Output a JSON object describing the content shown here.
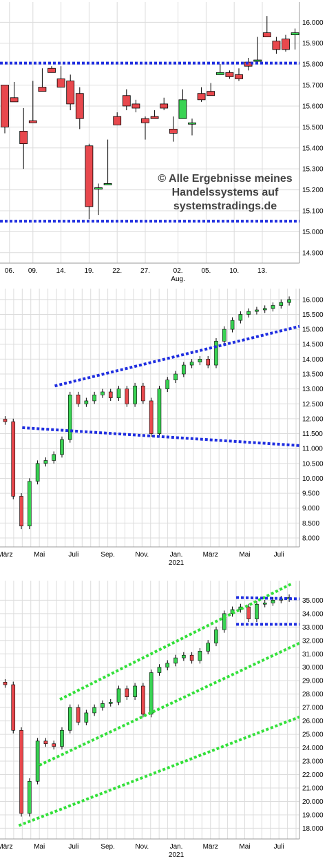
{
  "watermark": {
    "line1": "© Alle Ergebnisse meines",
    "line2": "Handelssystems auf",
    "line3": "systemstradings.de"
  },
  "colors": {
    "up": "#39d353",
    "down": "#e8484d",
    "support": "#1f2ee0",
    "channel": "#33e03a",
    "grid": "#dcdcdc"
  },
  "chart_data": [
    {
      "type": "candlestick",
      "title": "",
      "ylim": [
        14850,
        16080
      ],
      "y_ticks": [
        14900,
        15000,
        15100,
        15200,
        15300,
        15400,
        15500,
        15600,
        15700,
        15800,
        15900,
        16000
      ],
      "y_tick_labels": [
        "14.900",
        "15.000",
        "15.100",
        "15.200",
        "15.300",
        "15.400",
        "15.500",
        "15.600",
        "15.700",
        "15.800",
        "15.900",
        "16.000"
      ],
      "x_tick_labels": [
        "06.",
        "09.",
        "14.",
        "19.",
        "22.",
        "27.",
        "02.",
        "05.",
        "10.",
        "13."
      ],
      "x_tick_positions": [
        0.5,
        3,
        6,
        9,
        12,
        15,
        18.5,
        21.5,
        24.5,
        27.5
      ],
      "x_sublabel": "Aug.",
      "x_sublabel_position": 18.5,
      "candles": [
        [
          15700,
          15600,
          15500,
          15470
        ],
        [
          15640,
          15700,
          15620,
          15715
        ],
        [
          15480,
          15590,
          15420,
          15300
        ],
        [
          15530,
          15720,
          15520,
          15520
        ],
        [
          15690,
          15780,
          15670,
          15670
        ],
        [
          15780,
          15790,
          15760,
          15760
        ],
        [
          15730,
          15750,
          15690,
          15790
        ],
        [
          15720,
          15750,
          15610,
          15580
        ],
        [
          15660,
          15690,
          15540,
          15490
        ],
        [
          15410,
          15420,
          15120,
          15060
        ],
        [
          15210,
          15230,
          15210,
          15080
        ],
        [
          15230,
          15420,
          15230,
          15440
        ],
        [
          15550,
          15570,
          15510,
          15560
        ],
        [
          15650,
          15680,
          15600,
          15580
        ],
        [
          15610,
          15630,
          15590,
          15570
        ],
        [
          15540,
          15550,
          15520,
          15440
        ],
        [
          15550,
          15580,
          15540,
          15540
        ],
        [
          15610,
          15640,
          15590,
          15580
        ],
        [
          15490,
          15550,
          15470,
          15430
        ],
        [
          15540,
          15620,
          15630,
          15680
        ],
        [
          15520,
          15540,
          15520,
          15460
        ],
        [
          15660,
          15690,
          15630,
          15620
        ],
        [
          15670,
          15710,
          15650,
          15660
        ],
        [
          15750,
          15790,
          15760,
          15800
        ],
        [
          15760,
          15770,
          15740,
          15730
        ],
        [
          15750,
          15780,
          15730,
          15720
        ],
        [
          15810,
          15830,
          15790,
          15770
        ],
        [
          15820,
          15930,
          15820,
          15880
        ],
        [
          15950,
          15980,
          15930,
          16030
        ],
        [
          15910,
          15930,
          15870,
          15850
        ],
        [
          15920,
          15940,
          15870,
          15860
        ],
        [
          15940,
          15970,
          15950,
          15870
        ]
      ],
      "horizontal_lines": [
        15805,
        15050
      ]
    },
    {
      "type": "candlestick",
      "title": "",
      "ylim": [
        7700,
        16250
      ],
      "y_ticks": [
        8000,
        8500,
        9000,
        9500,
        10000,
        10500,
        11000,
        11500,
        12000,
        12500,
        13000,
        13500,
        14000,
        14500,
        15000,
        15500,
        16000
      ],
      "y_tick_labels": [
        "8.000",
        "8.500",
        "9.000",
        "9.500",
        "10.000",
        "10.500",
        "11.000",
        "11.500",
        "12.000",
        "12.500",
        "13.000",
        "13.500",
        "14.000",
        "14.500",
        "15.000",
        "15.500",
        "16.000"
      ],
      "x_tick_labels": [
        "März",
        "Mai",
        "Juli",
        "Sep.",
        "Nov.",
        "Jan.",
        "März",
        "Mai",
        "Juli"
      ],
      "x_tick_positions": [
        0,
        2,
        4,
        6,
        8,
        10,
        12,
        14,
        16
      ],
      "x_sublabel": "2021",
      "x_sublabel_position": 10,
      "x_range": [
        -0.3,
        17.2
      ],
      "closes": [
        11900,
        9400,
        8400,
        9900,
        10500,
        10600,
        10800,
        11300,
        12800,
        12500,
        12600,
        12800,
        12900,
        12700,
        13000,
        12500,
        13100,
        12600,
        11500,
        13000,
        13300,
        13500,
        13800,
        13900,
        14000,
        13800,
        14600,
        15000,
        15300,
        15500,
        15600,
        15650,
        15700,
        15800,
        15900,
        16000
      ],
      "lines": [
        {
          "x0": 2.9,
          "y0": 13100,
          "x1": 17.2,
          "y1": 15100
        },
        {
          "x0": 1.0,
          "y0": 11700,
          "x1": 17.2,
          "y1": 11100
        }
      ]
    },
    {
      "type": "candlestick",
      "title": "",
      "ylim": [
        17200,
        36200
      ],
      "y_ticks": [
        18000,
        19000,
        20000,
        21000,
        22000,
        23000,
        24000,
        25000,
        26000,
        27000,
        28000,
        29000,
        30000,
        31000,
        32000,
        33000,
        34000,
        35000
      ],
      "y_tick_labels": [
        "18.000",
        "19.000",
        "20.000",
        "21.000",
        "22.000",
        "23.000",
        "24.000",
        "25.000",
        "26.000",
        "27.000",
        "28.000",
        "29.000",
        "30.000",
        "31.000",
        "32.000",
        "33.000",
        "34.000",
        "35.000"
      ],
      "x_tick_labels": [
        "März",
        "Mai",
        "Juli",
        "Sep.",
        "Nov.",
        "Jan.",
        "März",
        "Mai",
        "Juli"
      ],
      "x_tick_positions": [
        0,
        2,
        4,
        6,
        8,
        10,
        12,
        14,
        16
      ],
      "x_sublabel": "2021",
      "x_sublabel_position": 10,
      "x_range": [
        -0.3,
        17.2
      ],
      "closes": [
        28700,
        25300,
        19100,
        21500,
        24500,
        24300,
        24100,
        25300,
        27000,
        25900,
        26600,
        27000,
        27300,
        27400,
        28400,
        27800,
        28600,
        26500,
        29600,
        30000,
        30300,
        30700,
        30900,
        30500,
        31200,
        31800,
        32800,
        34000,
        34300,
        34500,
        33600,
        34700,
        34800,
        35000,
        35100,
        35200
      ],
      "lines": [
        {
          "x0": 3.2,
          "y0": 27600,
          "x1": 16.7,
          "y1": 36200,
          "color": "channel"
        },
        {
          "x0": 2.0,
          "y0": 22700,
          "x1": 17.2,
          "y1": 31800,
          "color": "channel"
        },
        {
          "x0": 0.8,
          "y0": 18200,
          "x1": 17.2,
          "y1": 26300,
          "color": "channel"
        },
        {
          "x0": 13.5,
          "y0": 35200,
          "x1": 17.2,
          "y1": 35100,
          "color": "support"
        },
        {
          "x0": 13.5,
          "y0": 33200,
          "x1": 17.2,
          "y1": 33200,
          "color": "support"
        }
      ]
    }
  ]
}
